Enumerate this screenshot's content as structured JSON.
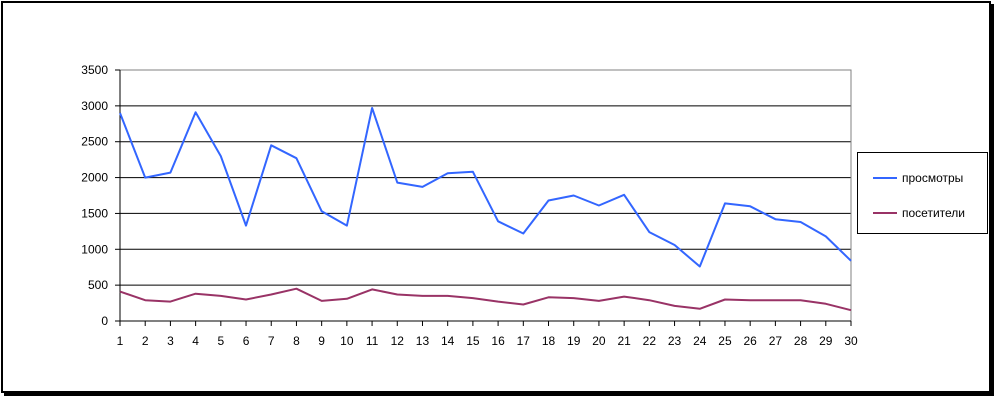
{
  "chart_data": {
    "type": "line",
    "title": "",
    "xlabel": "",
    "ylabel": "",
    "x": [
      1,
      2,
      3,
      4,
      5,
      6,
      7,
      8,
      9,
      10,
      11,
      12,
      13,
      14,
      15,
      16,
      17,
      18,
      19,
      20,
      21,
      22,
      23,
      24,
      25,
      26,
      27,
      28,
      29,
      30
    ],
    "ylim": [
      0,
      3500
    ],
    "yticks": [
      0,
      500,
      1000,
      1500,
      2000,
      2500,
      3000,
      3500
    ],
    "grid": true,
    "legend_position": "right",
    "series": [
      {
        "name": "просмотры",
        "color": "#3366ff",
        "values": [
          2900,
          2000,
          2070,
          2910,
          2300,
          1330,
          2450,
          2270,
          1530,
          1330,
          2970,
          1930,
          1870,
          2060,
          2080,
          1390,
          1220,
          1680,
          1750,
          1610,
          1760,
          1240,
          1060,
          760,
          1640,
          1600,
          1420,
          1380,
          1180,
          840
        ]
      },
      {
        "name": "посетители",
        "color": "#993366",
        "values": [
          410,
          290,
          270,
          380,
          350,
          300,
          370,
          450,
          280,
          310,
          440,
          370,
          350,
          350,
          320,
          270,
          230,
          330,
          320,
          280,
          340,
          290,
          210,
          170,
          300,
          290,
          290,
          290,
          240,
          150
        ]
      }
    ]
  }
}
